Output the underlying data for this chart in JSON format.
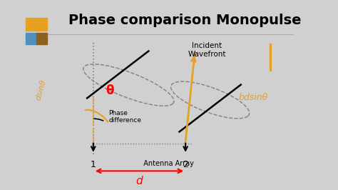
{
  "title": "Phase comparison Monopulse",
  "bg_color": "#ffffff",
  "title_color": "#000000",
  "title_fontsize": 14,
  "title_fontweight": "bold",
  "fig_bg": "#d0d0d0",
  "wavefront_label": "Incident\nWavefront",
  "antenna_label": "Antenna Array",
  "d_label": "d",
  "phase_diff_label": "Phase\ndifference",
  "theta_label": "θ",
  "dsin_label": "dsinθ",
  "bdsin_label": "bdsinθ",
  "logo_orange": "#e8a020",
  "logo_blue": "#5090c0",
  "logo_brown": "#8B6020",
  "line_color": "#aaaaaa",
  "a1x": 0.3,
  "a2x": 0.6,
  "ay": 0.18
}
